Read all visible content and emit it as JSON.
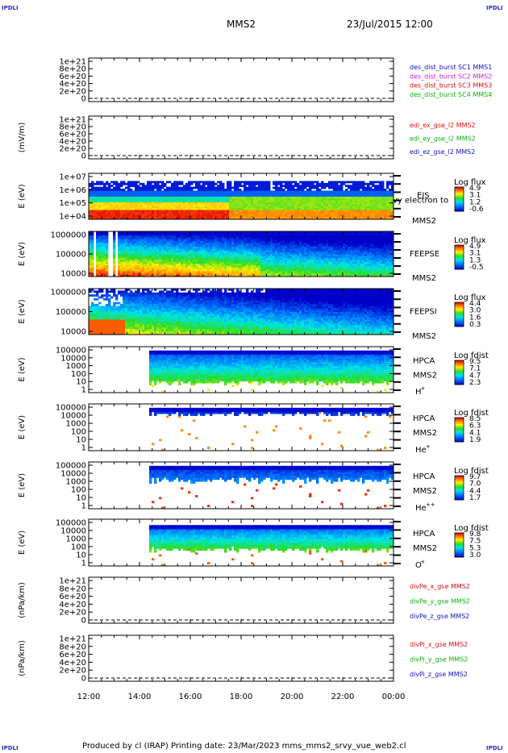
{
  "corner_labels": {
    "top_left": "IPDLI",
    "top_right": "IPDLI",
    "bottom_left": "IPDLI",
    "bottom_right": "IPDLI"
  },
  "header": {
    "spacecraft": "MMS2",
    "datetime": "23/Jul/2015 12:00"
  },
  "footer": {
    "text": "Produced by cl (IRAP)   Printing date: 23/Mar/2023   mms_mms2_srvy_vue_web2.cl"
  },
  "chart_data": {
    "type": "multi-panel time series",
    "x_ticks": [
      "12:00",
      "14:00",
      "16:00",
      "18:00",
      "20:00",
      "22:00",
      "00:00"
    ],
    "x_range": [
      "2015-07-23 12:00",
      "2015-07-24 00:00"
    ],
    "panels": [
      {
        "id": "p1",
        "kind": "line",
        "ylabel": "",
        "yticks": [
          "1e+21",
          "8e+20",
          "6e+20",
          "4e+20",
          "2e+20",
          "0"
        ],
        "ylim": [
          0,
          1e+21
        ],
        "legend": [
          {
            "label": "des_dist_burst SC1 MMS1",
            "color": "#1010c8"
          },
          {
            "label": "des_dist_burst SC2 MMS2",
            "color": "#d020d0"
          },
          {
            "label": "des_dist_burst SC3 MMS3",
            "color": "#e01010"
          },
          {
            "label": "des_dist_burst SC4 MMS4",
            "color": "#10b010"
          }
        ]
      },
      {
        "id": "p2",
        "kind": "line",
        "ylabel": "(mV/m)",
        "yticks": [
          "1e+21",
          "8e+20",
          "6e+20",
          "4e+20",
          "2e+20",
          "0"
        ],
        "ylim": [
          0,
          1e+21
        ],
        "legend": [
          {
            "label": "edi_ex_gse_l2 MMS2",
            "color": "#e01010"
          },
          {
            "label": "edi_ey_gse_l2 MMS2",
            "color": "#10b010"
          },
          {
            "label": "edi_ez_gse_l2 MMS2",
            "color": "#1010c8"
          }
        ]
      },
      {
        "id": "p3",
        "kind": "spectrogram",
        "ylabel": "E (eV)",
        "scale": "log",
        "yticks": [
          "1e+07",
          "1e+06",
          "1e+05",
          "1e+04"
        ],
        "instrument": "EIS",
        "overflow_text": "vy electron to",
        "sc": "MMS2",
        "species": "",
        "colorbar": {
          "title": "Log flux",
          "ticks": [
            "4.9",
            "3.1",
            "1.2",
            "-0.6"
          ]
        }
      },
      {
        "id": "p4",
        "kind": "spectrogram",
        "ylabel": "E (eV)",
        "scale": "log",
        "yticks": [
          "1000000",
          "100000",
          "10000"
        ],
        "instrument": "FEEPSE",
        "sc": "MMS2",
        "species": "",
        "colorbar": {
          "title": "Log flux",
          "ticks": [
            "4.9",
            "3.1",
            "1.3",
            "-0.5"
          ]
        }
      },
      {
        "id": "p5",
        "kind": "spectrogram",
        "ylabel": "E (eV)",
        "scale": "log",
        "yticks": [
          "1000000",
          "100000",
          "10000"
        ],
        "instrument": "FEEPSI",
        "sc": "MMS2",
        "species": "",
        "colorbar": {
          "title": "Log flux",
          "ticks": [
            "4.4",
            "3.0",
            "1.6",
            "0.3"
          ]
        }
      },
      {
        "id": "p6",
        "kind": "spectrogram",
        "ylabel": "E (eV)",
        "scale": "log",
        "yticks": [
          "100000",
          "10000",
          "1000",
          "100",
          "10",
          "1"
        ],
        "instrument": "HPCA",
        "sc": "MMS2",
        "species": "H",
        "species_sup": "+",
        "colorbar": {
          "title": "Log fdist",
          "ticks": [
            "9.5",
            "7.1",
            "4.7",
            "2.3"
          ]
        }
      },
      {
        "id": "p7",
        "kind": "spectrogram",
        "ylabel": "E (eV)",
        "scale": "log",
        "yticks": [
          "100000",
          "10000",
          "1000",
          "100",
          "10",
          "1"
        ],
        "instrument": "HPCA",
        "sc": "MMS2",
        "species": "He",
        "species_sup": "+",
        "colorbar": {
          "title": "Log fdist",
          "ticks": [
            "8.5",
            "6.3",
            "4.1",
            "1.9"
          ]
        }
      },
      {
        "id": "p8",
        "kind": "spectrogram",
        "ylabel": "E (eV)",
        "scale": "log",
        "yticks": [
          "100000",
          "10000",
          "1000",
          "100",
          "10",
          "1"
        ],
        "instrument": "HPCA",
        "sc": "MMS2",
        "species": "He",
        "species_sup": "++",
        "colorbar": {
          "title": "Log fdist",
          "ticks": [
            "9.7",
            "7.0",
            "4.4",
            "1.7"
          ]
        }
      },
      {
        "id": "p9",
        "kind": "spectrogram",
        "ylabel": "E (eV)",
        "scale": "log",
        "yticks": [
          "100000",
          "10000",
          "1000",
          "100",
          "10",
          "1"
        ],
        "instrument": "HPCA",
        "sc": "MMS2",
        "species": "O",
        "species_sup": "+",
        "colorbar": {
          "title": "Log fdist",
          "ticks": [
            "9.8",
            "7.5",
            "5.3",
            "3.0"
          ]
        }
      },
      {
        "id": "p10",
        "kind": "line",
        "ylabel": "(nPa/km)",
        "yticks": [
          "1e+21",
          "8e+20",
          "6e+20",
          "4e+20",
          "2e+20",
          "0"
        ],
        "ylim": [
          0,
          1e+21
        ],
        "legend": [
          {
            "label": "divPe_x_gse MMS2",
            "color": "#e01010"
          },
          {
            "label": "divPe_y_gse MMS2",
            "color": "#10b010"
          },
          {
            "label": "divPe_z_gse MMS2",
            "color": "#1010c8"
          }
        ]
      },
      {
        "id": "p11",
        "kind": "line",
        "ylabel": "(nPa/km)",
        "yticks": [
          "1e+21",
          "8e+20",
          "6e+20",
          "4e+20",
          "2e+20",
          "0"
        ],
        "ylim": [
          0,
          1e+21
        ],
        "legend": [
          {
            "label": "divPi_x_gse MMS2",
            "color": "#e01010"
          },
          {
            "label": "divPi_y_gse MMS2",
            "color": "#10b010"
          },
          {
            "label": "divPi_z_gse MMS2",
            "color": "#1010c8"
          }
        ]
      }
    ]
  }
}
